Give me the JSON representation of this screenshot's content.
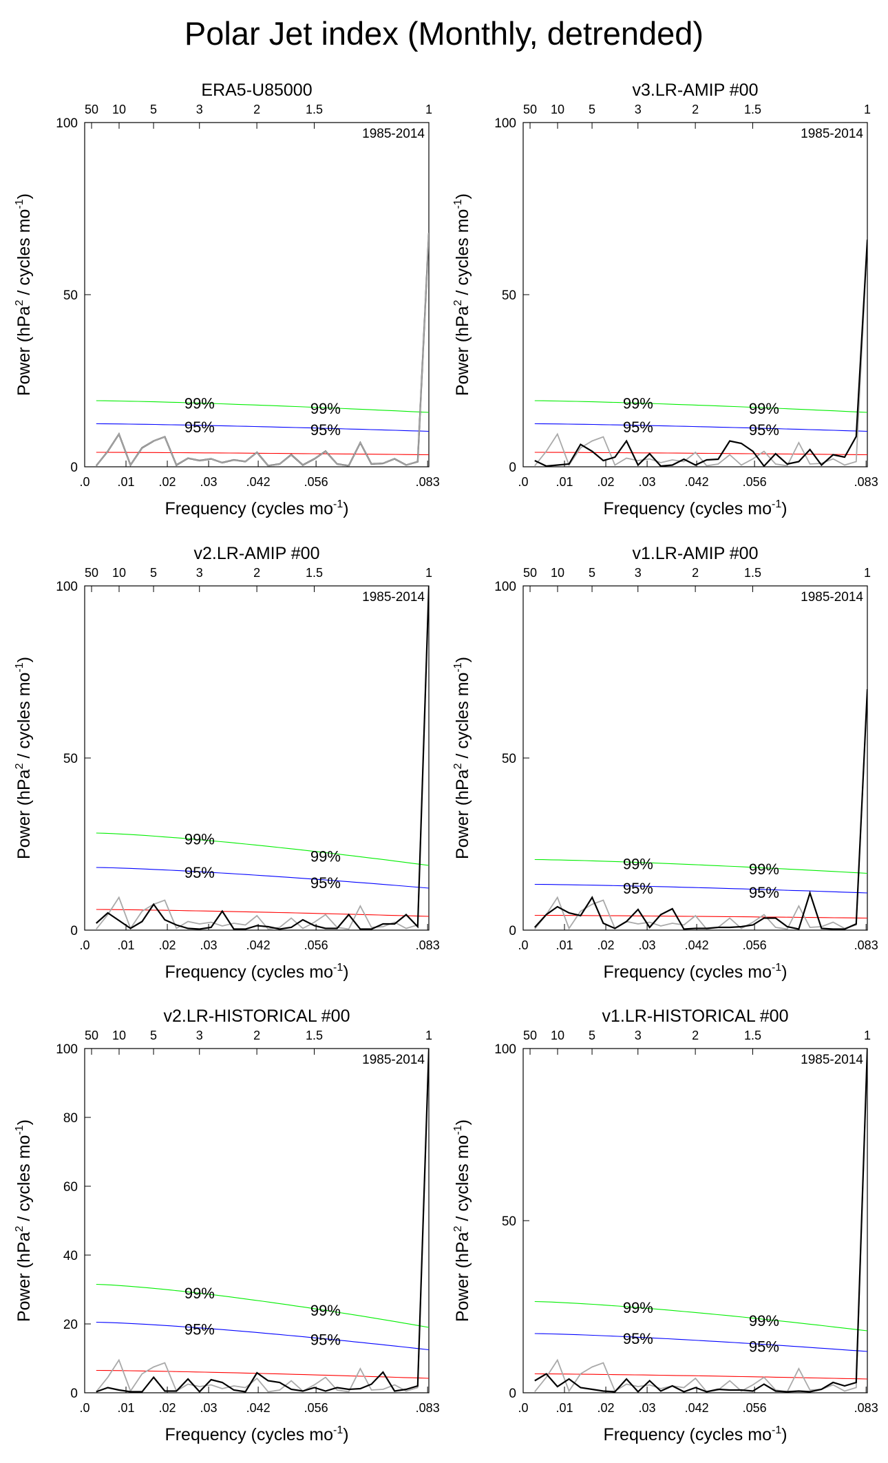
{
  "page_title": "Polar Jet index (Monthly, detrended)",
  "colors": {
    "green": "#00ee00",
    "blue": "#0000ff",
    "red": "#ff0000",
    "gray": "#a9a9a9",
    "black": "#000000"
  },
  "shared": {
    "xlabel": "Frequency (cycles mo",
    "xlabel_sup": "-1",
    "xlabel_tail": ")",
    "ylabel_pre": "Power (hPa",
    "ylabel_sup1": "2",
    "ylabel_mid": " / cycles mo",
    "ylabel_sup2": "-1",
    "ylabel_tail": ")",
    "period_label": "1985-2014",
    "bottom_ticks": [
      [
        0.0,
        ".0"
      ],
      [
        0.01,
        ".01"
      ],
      [
        0.02,
        ".02"
      ],
      [
        0.03,
        ".03"
      ],
      [
        0.042,
        ".042"
      ],
      [
        0.056,
        ".056"
      ],
      [
        0.083,
        ".083"
      ]
    ],
    "top_ticks": [
      [
        0.00167,
        "50"
      ],
      [
        0.00833,
        "10"
      ],
      [
        0.01667,
        "5"
      ],
      [
        0.02778,
        "3"
      ],
      [
        0.04167,
        "2"
      ],
      [
        0.05556,
        "1.5"
      ],
      [
        0.0833,
        "1"
      ]
    ],
    "label_99": "99%",
    "label_95": "95%"
  },
  "chart_data": [
    {
      "type": "line",
      "title": "ERA5-U85000",
      "xlim": [
        0,
        0.0833
      ],
      "ylim": [
        0,
        100
      ],
      "yticks": [
        0,
        50,
        100
      ],
      "x": [
        0.0028,
        0.0056,
        0.0083,
        0.0111,
        0.0139,
        0.0167,
        0.0194,
        0.0222,
        0.025,
        0.0278,
        0.0306,
        0.0333,
        0.0361,
        0.0389,
        0.0417,
        0.0444,
        0.0472,
        0.05,
        0.0528,
        0.0556,
        0.0583,
        0.0611,
        0.0639,
        0.0667,
        0.0694,
        0.0722,
        0.075,
        0.0778,
        0.0806,
        0.0833
      ],
      "series": [
        {
          "style": "black",
          "values": [
            0.3,
            4.5,
            9.5,
            0.5,
            5.5,
            7.5,
            8.7,
            0.5,
            2.5,
            1.8,
            2.3,
            1.2,
            2.0,
            1.5,
            4.2,
            0.3,
            0.8,
            3.5,
            0.5,
            2.3,
            4.5,
            0.8,
            0.3,
            7.0,
            0.8,
            1.0,
            2.3,
            0.5,
            1.5,
            68
          ]
        },
        {
          "style": "gray",
          "values": [
            0.3,
            4.5,
            9.5,
            0.5,
            5.5,
            7.5,
            8.7,
            0.5,
            2.5,
            1.8,
            2.3,
            1.2,
            2.0,
            1.5,
            4.2,
            0.3,
            0.8,
            3.5,
            0.5,
            2.3,
            4.5,
            0.8,
            0.3,
            7.0,
            0.8,
            1.0,
            2.3,
            0.5,
            1.5,
            68
          ]
        }
      ],
      "red_line": [
        4.2,
        3.5
      ],
      "green_line": [
        19.2,
        15.8
      ],
      "blue_line": [
        12.5,
        10.3
      ],
      "label99_pos": [
        [
          0.0278,
          18.5
        ],
        [
          0.0583,
          17.0
        ]
      ],
      "label95_pos": [
        [
          0.0278,
          11.6
        ],
        [
          0.0583,
          10.8
        ]
      ]
    },
    {
      "type": "line",
      "title": "v3.LR-AMIP  #00",
      "xlim": [
        0,
        0.0833
      ],
      "ylim": [
        0,
        100
      ],
      "yticks": [
        0,
        50,
        100
      ],
      "x": [
        0.0028,
        0.0056,
        0.0083,
        0.0111,
        0.0139,
        0.0167,
        0.0194,
        0.0222,
        0.025,
        0.0278,
        0.0306,
        0.0333,
        0.0361,
        0.0389,
        0.0417,
        0.0444,
        0.0472,
        0.05,
        0.0528,
        0.0556,
        0.0583,
        0.0611,
        0.0639,
        0.0667,
        0.0694,
        0.0722,
        0.075,
        0.0778,
        0.0806,
        0.0833
      ],
      "series": [
        {
          "style": "gray",
          "values": [
            0.3,
            4.5,
            9.5,
            0.5,
            5.5,
            7.5,
            8.7,
            0.5,
            2.5,
            1.8,
            2.3,
            1.2,
            2.0,
            1.5,
            4.2,
            0.3,
            0.8,
            3.5,
            0.5,
            2.3,
            4.5,
            0.8,
            0.3,
            7.0,
            0.8,
            1.0,
            2.3,
            0.5,
            1.5,
            66
          ]
        },
        {
          "style": "black",
          "values": [
            1.8,
            0.2,
            0.5,
            0.8,
            6.5,
            4.5,
            1.8,
            2.8,
            7.5,
            0.5,
            3.8,
            0.2,
            0.5,
            2.2,
            0.5,
            2.0,
            2.2,
            7.5,
            6.8,
            4.5,
            0.2,
            3.8,
            0.8,
            1.5,
            5.0,
            0.5,
            3.5,
            2.8,
            8.8,
            66
          ]
        }
      ],
      "red_line": [
        4.2,
        3.5
      ],
      "green_line": [
        19.2,
        15.8
      ],
      "blue_line": [
        12.5,
        10.3
      ],
      "label99_pos": [
        [
          0.0278,
          18.5
        ],
        [
          0.0583,
          17.0
        ]
      ],
      "label95_pos": [
        [
          0.0278,
          11.6
        ],
        [
          0.0583,
          10.8
        ]
      ]
    },
    {
      "type": "line",
      "title": "v2.LR-AMIP  #00",
      "xlim": [
        0,
        0.0833
      ],
      "ylim": [
        0,
        100
      ],
      "yticks": [
        0,
        50,
        100
      ],
      "x": [
        0.0028,
        0.0056,
        0.0083,
        0.0111,
        0.0139,
        0.0167,
        0.0194,
        0.0222,
        0.025,
        0.0278,
        0.0306,
        0.0333,
        0.0361,
        0.0389,
        0.0417,
        0.0444,
        0.0472,
        0.05,
        0.0528,
        0.0556,
        0.0583,
        0.0611,
        0.0639,
        0.0667,
        0.0694,
        0.0722,
        0.075,
        0.0778,
        0.0806,
        0.0833
      ],
      "series": [
        {
          "style": "gray",
          "values": [
            0.3,
            4.5,
            9.5,
            0.5,
            5.5,
            7.5,
            8.7,
            0.5,
            2.5,
            1.8,
            2.3,
            1.2,
            2.0,
            1.5,
            4.2,
            0.3,
            0.8,
            3.5,
            0.5,
            2.3,
            4.5,
            0.8,
            0.3,
            7.0,
            0.8,
            1.0,
            2.3,
            0.5,
            1.5,
            100
          ]
        },
        {
          "style": "black",
          "values": [
            2.0,
            5.0,
            2.8,
            0.5,
            2.5,
            7.5,
            3.0,
            1.5,
            0.5,
            0.3,
            0.8,
            5.5,
            0.3,
            0.3,
            1.3,
            1.0,
            0.3,
            0.8,
            3.0,
            1.3,
            0.5,
            0.5,
            4.5,
            0.3,
            0.3,
            1.8,
            1.8,
            4.5,
            1.0,
            100
          ]
        }
      ],
      "red_line": [
        6.0,
        4.0
      ],
      "green_line": [
        28.2,
        18.8
      ],
      "blue_line": [
        18.2,
        12.2
      ],
      "label99_pos": [
        [
          0.0278,
          26.5
        ],
        [
          0.0583,
          21.5
        ]
      ],
      "label95_pos": [
        [
          0.0278,
          16.8
        ],
        [
          0.0583,
          13.8
        ]
      ]
    },
    {
      "type": "line",
      "title": "v1.LR-AMIP  #00",
      "xlim": [
        0,
        0.0833
      ],
      "ylim": [
        0,
        100
      ],
      "yticks": [
        0,
        50,
        100
      ],
      "x": [
        0.0028,
        0.0056,
        0.0083,
        0.0111,
        0.0139,
        0.0167,
        0.0194,
        0.0222,
        0.025,
        0.0278,
        0.0306,
        0.0333,
        0.0361,
        0.0389,
        0.0417,
        0.0444,
        0.0472,
        0.05,
        0.0528,
        0.0556,
        0.0583,
        0.0611,
        0.0639,
        0.0667,
        0.0694,
        0.0722,
        0.075,
        0.0778,
        0.0806,
        0.0833
      ],
      "series": [
        {
          "style": "gray",
          "values": [
            0.3,
            4.5,
            9.5,
            0.5,
            5.5,
            7.5,
            8.7,
            0.5,
            2.5,
            1.8,
            2.3,
            1.2,
            2.0,
            1.5,
            4.2,
            0.3,
            0.8,
            3.5,
            0.5,
            2.3,
            4.5,
            0.8,
            0.3,
            7.0,
            0.8,
            1.0,
            2.3,
            0.5,
            1.5,
            70
          ]
        },
        {
          "style": "black",
          "values": [
            0.8,
            4.5,
            6.8,
            5.0,
            4.2,
            9.5,
            2.0,
            0.5,
            2.5,
            6.0,
            0.8,
            4.5,
            6.2,
            0.3,
            0.5,
            0.5,
            0.8,
            0.8,
            1.0,
            1.5,
            3.5,
            3.5,
            1.0,
            0.3,
            10.8,
            0.5,
            0.3,
            0.3,
            1.8,
            70
          ]
        }
      ],
      "red_line": [
        4.3,
        3.5
      ],
      "green_line": [
        20.5,
        16.5
      ],
      "blue_line": [
        13.3,
        10.8
      ],
      "label99_pos": [
        [
          0.0278,
          19.3
        ],
        [
          0.0583,
          17.8
        ]
      ],
      "label95_pos": [
        [
          0.0278,
          12.2
        ],
        [
          0.0583,
          11.0
        ]
      ]
    },
    {
      "type": "line",
      "title": "v2.LR-HISTORICAL  #00",
      "xlim": [
        0,
        0.0833
      ],
      "ylim": [
        0,
        100
      ],
      "yticks": [
        0,
        20,
        40,
        60,
        80,
        100
      ],
      "x": [
        0.0028,
        0.0056,
        0.0083,
        0.0111,
        0.0139,
        0.0167,
        0.0194,
        0.0222,
        0.025,
        0.0278,
        0.0306,
        0.0333,
        0.0361,
        0.0389,
        0.0417,
        0.0444,
        0.0472,
        0.05,
        0.0528,
        0.0556,
        0.0583,
        0.0611,
        0.0639,
        0.0667,
        0.0694,
        0.0722,
        0.075,
        0.0778,
        0.0806,
        0.0833
      ],
      "series": [
        {
          "style": "gray",
          "values": [
            0.3,
            4.5,
            9.5,
            0.5,
            5.5,
            7.5,
            8.7,
            0.5,
            2.5,
            1.8,
            2.3,
            1.2,
            2.0,
            1.5,
            4.2,
            0.3,
            0.8,
            3.5,
            0.5,
            2.3,
            4.5,
            0.8,
            0.3,
            7.0,
            0.8,
            1.0,
            2.3,
            0.5,
            1.5,
            100
          ]
        },
        {
          "style": "black",
          "values": [
            0.3,
            1.5,
            0.8,
            0.3,
            0.3,
            4.5,
            0.5,
            0.5,
            4.0,
            0.3,
            3.8,
            3.0,
            0.8,
            0.3,
            5.8,
            3.5,
            3.0,
            1.0,
            0.5,
            1.5,
            0.5,
            1.5,
            1.0,
            1.2,
            2.5,
            6.0,
            0.5,
            1.0,
            2.0,
            100
          ]
        }
      ],
      "red_line": [
        6.5,
        4.2
      ],
      "green_line": [
        31.5,
        19.0
      ],
      "blue_line": [
        20.5,
        12.5
      ],
      "label99_pos": [
        [
          0.0278,
          29.0
        ],
        [
          0.0583,
          24.0
        ]
      ],
      "label95_pos": [
        [
          0.0278,
          18.5
        ],
        [
          0.0583,
          15.5
        ]
      ]
    },
    {
      "type": "line",
      "title": "v1.LR-HISTORICAL  #00",
      "xlim": [
        0,
        0.0833
      ],
      "ylim": [
        0,
        100
      ],
      "yticks": [
        0,
        50,
        100
      ],
      "x": [
        0.0028,
        0.0056,
        0.0083,
        0.0111,
        0.0139,
        0.0167,
        0.0194,
        0.0222,
        0.025,
        0.0278,
        0.0306,
        0.0333,
        0.0361,
        0.0389,
        0.0417,
        0.0444,
        0.0472,
        0.05,
        0.0528,
        0.0556,
        0.0583,
        0.0611,
        0.0639,
        0.0667,
        0.0694,
        0.0722,
        0.075,
        0.0778,
        0.0806,
        0.0833
      ],
      "series": [
        {
          "style": "gray",
          "values": [
            0.3,
            4.5,
            9.5,
            0.5,
            5.5,
            7.5,
            8.7,
            0.5,
            2.5,
            1.8,
            2.3,
            1.2,
            2.0,
            1.5,
            4.2,
            0.3,
            0.8,
            3.5,
            0.5,
            2.3,
            4.5,
            0.8,
            0.3,
            7.0,
            0.8,
            1.0,
            2.3,
            0.5,
            1.5,
            100
          ]
        },
        {
          "style": "black",
          "values": [
            3.5,
            5.5,
            1.8,
            4.0,
            1.5,
            1.0,
            0.5,
            0.3,
            4.0,
            0.3,
            3.5,
            0.5,
            2.0,
            0.3,
            1.5,
            0.3,
            1.0,
            0.8,
            0.8,
            0.5,
            2.5,
            0.5,
            0.3,
            0.5,
            0.3,
            1.0,
            3.0,
            2.0,
            3.0,
            100
          ]
        }
      ],
      "red_line": [
        5.5,
        4.0
      ],
      "green_line": [
        26.5,
        18.0
      ],
      "blue_line": [
        17.2,
        12.0
      ],
      "label99_pos": [
        [
          0.0278,
          24.8
        ],
        [
          0.0583,
          21.0
        ]
      ],
      "label95_pos": [
        [
          0.0278,
          15.8
        ],
        [
          0.0583,
          13.5
        ]
      ]
    }
  ]
}
